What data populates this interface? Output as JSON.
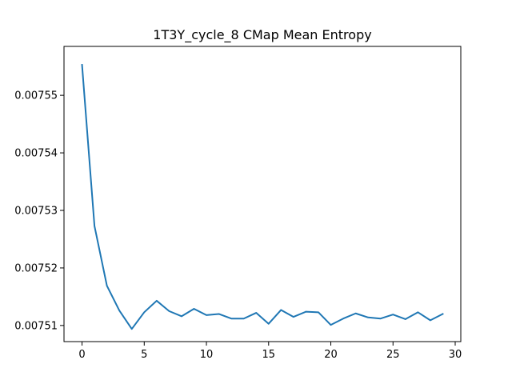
{
  "chart_data": {
    "type": "line",
    "title": "1T3Y_cycle_8 CMap Mean Entropy",
    "xlabel": "",
    "ylabel": "",
    "xlim": [
      -1.45,
      30.45
    ],
    "ylim": [
      0.0075072,
      0.0075585
    ],
    "xticks": [
      0,
      5,
      10,
      15,
      20,
      25,
      30
    ],
    "xtick_labels": [
      "0",
      "5",
      "10",
      "15",
      "20",
      "25",
      "30"
    ],
    "yticks": [
      0.00751,
      0.00752,
      0.00753,
      0.00754,
      0.00755
    ],
    "ytick_labels": [
      "0.00751",
      "0.00752",
      "0.00753",
      "0.00754",
      "0.00755"
    ],
    "grid": false,
    "line_color": "#1f77b4",
    "series": [
      {
        "x": [
          0,
          1,
          2,
          3,
          4,
          5,
          6,
          7,
          8,
          9,
          10,
          11,
          12,
          13,
          14,
          15,
          16,
          17,
          18,
          19,
          20,
          21,
          22,
          23,
          24,
          25,
          26,
          27,
          28,
          29
        ],
        "values": [
          0.0075553,
          0.0075273,
          0.0075169,
          0.0075126,
          0.0075094,
          0.0075123,
          0.0075143,
          0.0075125,
          0.0075116,
          0.0075129,
          0.0075118,
          0.007512,
          0.0075112,
          0.0075112,
          0.0075122,
          0.0075103,
          0.0075127,
          0.0075115,
          0.0075124,
          0.0075123,
          0.0075101,
          0.0075112,
          0.0075121,
          0.0075114,
          0.0075112,
          0.0075119,
          0.0075111,
          0.0075123,
          0.0075109,
          0.007512
        ]
      }
    ]
  }
}
